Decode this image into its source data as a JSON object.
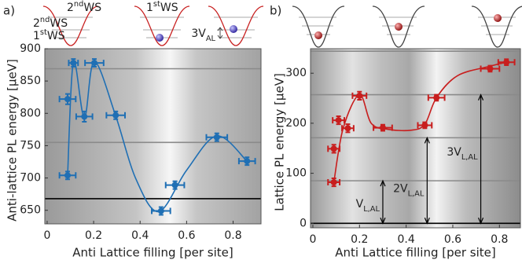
{
  "chart_data": [
    {
      "type": "scatter",
      "panel_label": "a)",
      "xlabel": "Anti Lattice filling [per site]",
      "ylabel": "Anti-lattice PL energy [μeV]",
      "xlim": [
        -0.01,
        0.92
      ],
      "ylim": [
        629,
        900
      ],
      "xticks": [
        0,
        0.2,
        0.4,
        0.6,
        0.8
      ],
      "yticks": [
        650,
        700,
        750,
        800,
        850,
        900
      ],
      "series": [
        {
          "color": "#1f6fb4",
          "x": [
            0.088,
            0.088,
            0.113,
            0.16,
            0.203,
            0.295,
            0.49,
            0.55,
            0.73,
            0.86
          ],
          "values": [
            704,
            822,
            878,
            795,
            878,
            797,
            649,
            689,
            763,
            726
          ],
          "xerr": [
            0.035,
            0.035,
            0.02,
            0.035,
            0.04,
            0.04,
            0.04,
            0.04,
            0.045,
            0.035
          ],
          "yerr": [
            6,
            8,
            6,
            8,
            6,
            6,
            6,
            6,
            6,
            6
          ]
        }
      ],
      "fit": {
        "color": "#1f6fb4",
        "x": [
          0.088,
          0.113,
          0.16,
          0.203,
          0.295,
          0.38,
          0.48,
          0.6,
          0.73,
          0.86
        ],
        "values": [
          704,
          880,
          793,
          880,
          796,
          700,
          648,
          712,
          765,
          726
        ]
      },
      "reference_lines": [
        {
          "value": 869,
          "color": "#8a8a8a"
        },
        {
          "value": 755,
          "color": "#8a8a8a"
        },
        {
          "value": 668,
          "color": "#000000"
        }
      ],
      "well_labels": [
        [
          {
            "text": "2"
          },
          {
            "text": "nd",
            "style": "sup"
          },
          {
            "text": "WS"
          }
        ],
        [
          {
            "text": "2"
          },
          {
            "text": "nd",
            "style": "sup"
          },
          {
            "text": "WS"
          }
        ],
        [
          {
            "text": "1"
          },
          {
            "text": "st",
            "style": "sup"
          },
          {
            "text": "WS"
          }
        ],
        [
          {
            "text": "1"
          },
          {
            "text": "st",
            "style": "sup"
          },
          {
            "text": "WS"
          }
        ],
        [
          {
            "text": "3V"
          },
          {
            "text": "AL",
            "style": "sub"
          }
        ]
      ]
    },
    {
      "type": "scatter",
      "panel_label": "b)",
      "xlabel": "Anti Lattice filling [per site]",
      "ylabel": "Lattice PL energy [μeV]",
      "xlim": [
        -0.01,
        0.89
      ],
      "ylim": [
        -9,
        349
      ],
      "xticks": [
        0,
        0.2,
        0.4,
        0.6,
        0.8
      ],
      "yticks": [
        0,
        100,
        200,
        300
      ],
      "series": [
        {
          "color": "#c81e1e",
          "x": [
            0.09,
            0.09,
            0.11,
            0.15,
            0.2,
            0.3,
            0.48,
            0.53,
            0.76,
            0.83
          ],
          "values": [
            82,
            149,
            206,
            190,
            255,
            191,
            196,
            251,
            309,
            322
          ],
          "xerr": [
            0.025,
            0.025,
            0.025,
            0.025,
            0.03,
            0.04,
            0.03,
            0.035,
            0.04,
            0.035
          ],
          "yerr": [
            8,
            8,
            8,
            8,
            8,
            6,
            6,
            6,
            6,
            6
          ]
        }
      ],
      "fit": {
        "color": "#c81e1e",
        "x": [
          0.09,
          0.13,
          0.2,
          0.25,
          0.32,
          0.42,
          0.48,
          0.53,
          0.62,
          0.76,
          0.83
        ],
        "values": [
          82,
          190,
          257,
          200,
          188,
          186,
          198,
          251,
          295,
          314,
          322
        ]
      },
      "reference_lines": [
        {
          "value": 344,
          "color": "#8a8a8a"
        },
        {
          "value": 257,
          "color": "#8a8a8a"
        },
        {
          "value": 171,
          "color": "#8a8a8a"
        },
        {
          "value": 85,
          "color": "#8a8a8a"
        },
        {
          "value": 0,
          "color": "#000000"
        }
      ],
      "arrows": [
        {
          "x": 0.3,
          "from": 0,
          "to": 85,
          "label": [
            {
              "text": "V"
            },
            {
              "text": "L,AL",
              "style": "sub"
            }
          ]
        },
        {
          "x": 0.49,
          "from": 0,
          "to": 171,
          "label": [
            {
              "text": "2V"
            },
            {
              "text": "L,AL",
              "style": "sub"
            }
          ]
        },
        {
          "x": 0.72,
          "from": 0,
          "to": 257,
          "label": [
            {
              "text": "3V"
            },
            {
              "text": "L,AL",
              "style": "sub"
            }
          ]
        }
      ]
    }
  ]
}
